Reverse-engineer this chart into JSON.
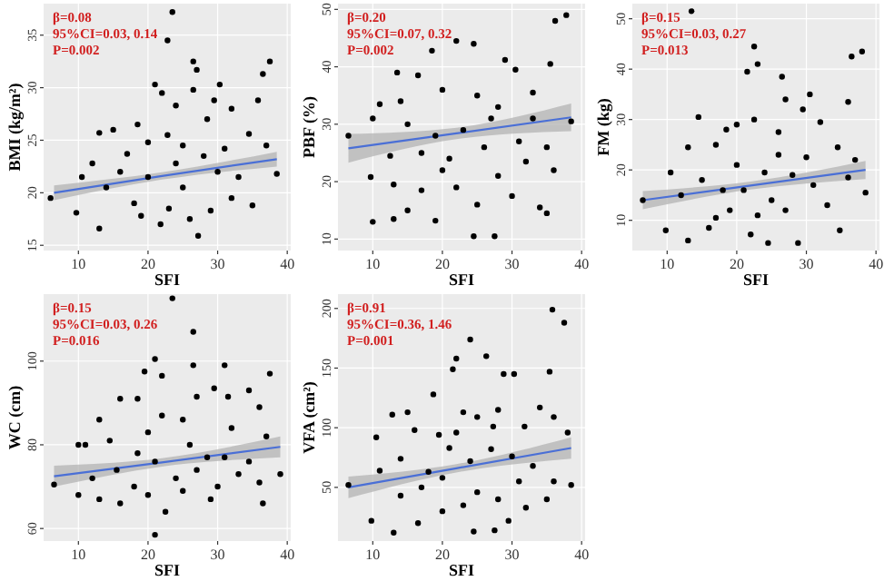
{
  "chart_data": [
    {
      "type": "scatter",
      "xlabel": "SFI",
      "ylabel": "BMI (kg/m²)",
      "xlim": [
        5,
        40.5
      ],
      "xticks": [
        10,
        20,
        30,
        40
      ],
      "ylim": [
        14.5,
        38
      ],
      "yticks": [
        15,
        20,
        25,
        30,
        35
      ],
      "grid": true,
      "marker": "circle",
      "annotations": [
        "β=0.08",
        "95%CI=0.03, 0.14",
        "P=0.002"
      ],
      "series": [
        {
          "type": "scatter",
          "color": "#000000",
          "x": [
            23.5,
            22.8,
            26.5,
            37.5,
            27,
            36.5,
            21,
            30.3,
            26.5,
            29.5,
            35.8,
            22,
            24,
            32,
            18.5,
            28.5,
            13,
            22.8,
            34.5,
            15,
            37,
            20,
            25,
            10.5,
            6,
            9.7,
            13,
            21.8,
            27.2,
            35,
            38.5,
            16,
            18,
            25,
            30,
            32,
            20,
            23,
            28,
            14,
            17,
            26,
            31,
            19,
            24,
            33,
            12,
            29
          ],
          "values": [
            37.2,
            34.5,
            32.5,
            32.5,
            31.7,
            31.3,
            30.3,
            30.3,
            29.8,
            28.8,
            28.8,
            29.5,
            28.3,
            28,
            26.5,
            27,
            25.7,
            25.5,
            25.6,
            26,
            24.5,
            24.8,
            24.5,
            21.5,
            19.5,
            18.1,
            16.6,
            17,
            15.9,
            18.8,
            21.8,
            22,
            19,
            20.5,
            22,
            19.5,
            21.5,
            18.5,
            23.5,
            20.5,
            23.7,
            17.5,
            24.2,
            17.8,
            22.8,
            21.5,
            22.8,
            18.3
          ]
        },
        {
          "type": "line",
          "marker": "none",
          "color": "#4a6fd6",
          "x": [
            6.5,
            22,
            38.5
          ],
          "values": [
            20,
            21.6,
            23.2
          ],
          "lower": [
            19.3,
            21.25,
            22.5
          ],
          "upper": [
            20.7,
            21.95,
            23.9
          ]
        }
      ]
    },
    {
      "type": "scatter",
      "xlabel": "SFI",
      "ylabel": "PBF (%)",
      "xlim": [
        5,
        40.5
      ],
      "xticks": [
        10,
        20,
        30,
        40
      ],
      "ylim": [
        8,
        51
      ],
      "yticks": [
        10,
        20,
        30,
        40,
        50
      ],
      "grid": true,
      "marker": "circle",
      "annotations": [
        "β=0.20",
        "95%CI=0.07, 0.32",
        "P=0.002"
      ],
      "series": [
        {
          "type": "scatter",
          "color": "#000000",
          "x": [
            37.8,
            36.2,
            22,
            24.5,
            18.5,
            29,
            35.5,
            13.5,
            16.5,
            30.5,
            11,
            10,
            14,
            20,
            25,
            28,
            33,
            38.5,
            6.5,
            15,
            19,
            23,
            27,
            31,
            35,
            17,
            21,
            26,
            32,
            36,
            9.7,
            13,
            17,
            22,
            30,
            25,
            34,
            10,
            13,
            15,
            19,
            24.5,
            27.5,
            35,
            20,
            28,
            12.5,
            33
          ],
          "values": [
            49,
            48,
            44.5,
            44,
            42.8,
            41.2,
            40.5,
            39,
            38.5,
            39.5,
            33.5,
            31,
            34,
            36,
            35,
            33,
            35.5,
            30.5,
            28,
            30,
            28,
            29,
            31,
            27,
            26,
            25,
            24,
            26,
            23.5,
            22,
            20.8,
            19.5,
            18.5,
            19,
            17.5,
            16,
            15.5,
            13,
            13.5,
            15,
            13.2,
            10.5,
            10.5,
            14.5,
            22,
            21,
            24.5,
            31
          ]
        },
        {
          "type": "line",
          "marker": "none",
          "color": "#4a6fd6",
          "x": [
            6.5,
            22,
            38.5
          ],
          "values": [
            25.8,
            28.4,
            31.2
          ],
          "lower": [
            23.3,
            27.4,
            28.8
          ],
          "upper": [
            28.3,
            29.4,
            33.6
          ]
        }
      ]
    },
    {
      "type": "scatter",
      "xlabel": "SFI",
      "ylabel": "FM (kg)",
      "xlim": [
        5,
        40.5
      ],
      "xticks": [
        10,
        20,
        30,
        40
      ],
      "ylim": [
        4,
        53
      ],
      "yticks": [
        10,
        20,
        30,
        40,
        50
      ],
      "grid": true,
      "marker": "circle",
      "annotations": [
        "β=0.15",
        "95%CI=0.03, 0.27",
        "P=0.013"
      ],
      "series": [
        {
          "type": "scatter",
          "color": "#000000",
          "x": [
            13.5,
            22.5,
            38,
            36.5,
            23,
            21.5,
            26.5,
            27,
            30.5,
            36,
            14.5,
            22.5,
            20,
            29.5,
            32,
            18.5,
            26,
            13,
            17,
            34.5,
            37,
            10.5,
            6.5,
            9.8,
            13,
            16,
            22,
            24.5,
            28.8,
            34.8,
            38.5,
            12,
            15,
            19,
            21,
            25,
            28,
            31,
            33,
            36,
            17,
            20,
            24,
            27,
            30,
            18,
            23,
            26
          ],
          "values": [
            51.5,
            44.5,
            43.5,
            42.5,
            41,
            39.5,
            38.5,
            34,
            35,
            33.5,
            30.5,
            30,
            29,
            32,
            29.5,
            28,
            27.5,
            24.5,
            25,
            24.5,
            22,
            19.5,
            14,
            8,
            6,
            8.5,
            7.2,
            5.5,
            5.5,
            8,
            15.5,
            15,
            18,
            12,
            16,
            14,
            19,
            17,
            13,
            18.5,
            10.5,
            21,
            19.5,
            12,
            22.5,
            16,
            11,
            23
          ]
        },
        {
          "type": "line",
          "marker": "none",
          "color": "#4a6fd6",
          "x": [
            6.5,
            22,
            38.5
          ],
          "values": [
            14,
            16.9,
            20
          ],
          "lower": [
            12.2,
            16.1,
            18.2
          ],
          "upper": [
            15.8,
            17.7,
            21.8
          ]
        }
      ]
    },
    {
      "type": "scatter",
      "xlabel": "SFI",
      "ylabel": "WC (cm)",
      "xlim": [
        5,
        40.5
      ],
      "xticks": [
        10,
        20,
        30,
        40
      ],
      "ylim": [
        57,
        116
      ],
      "yticks": [
        60,
        80,
        100
      ],
      "grid": true,
      "marker": "circle",
      "annotations": [
        "β=0.15",
        "95%CI=0.03, 0.26",
        "P=0.016"
      ],
      "series": [
        {
          "type": "scatter",
          "color": "#000000",
          "x": [
            23.5,
            26.5,
            21,
            26.5,
            31,
            19.5,
            22,
            37.5,
            29.5,
            34.5,
            16,
            18.5,
            27,
            31.5,
            36,
            13,
            22,
            25,
            32,
            10,
            11,
            14.5,
            20,
            37,
            6.5,
            10,
            12,
            15.5,
            18,
            21,
            24,
            27,
            30,
            33,
            36,
            39,
            16,
            20,
            22.5,
            21,
            25,
            28.5,
            34.5,
            36.5,
            13,
            18.5,
            26,
            31,
            29
          ],
          "values": [
            115,
            107,
            100.5,
            99,
            99,
            97.5,
            96.5,
            97,
            93.5,
            93,
            91,
            91,
            91.5,
            91.5,
            89,
            86,
            87,
            86,
            84,
            80,
            80,
            81,
            83,
            82,
            70.5,
            68,
            72,
            74,
            70,
            76,
            72,
            74,
            70,
            73,
            71,
            73,
            66,
            68,
            64,
            58.5,
            69,
            77,
            76,
            66,
            67,
            78,
            80,
            77,
            67
          ]
        },
        {
          "type": "line",
          "marker": "none",
          "color": "#4a6fd6",
          "x": [
            6.5,
            22,
            39
          ],
          "values": [
            72.5,
            75.8,
            79.5
          ],
          "lower": [
            70,
            74.8,
            77
          ],
          "upper": [
            75,
            76.8,
            82
          ]
        }
      ]
    },
    {
      "type": "scatter",
      "xlabel": "SFI",
      "ylabel": "VFA (cm²)",
      "xlim": [
        5,
        40.5
      ],
      "xticks": [
        10,
        20,
        30,
        40
      ],
      "ylim": [
        5,
        212
      ],
      "yticks": [
        50,
        100,
        150,
        200
      ],
      "grid": true,
      "marker": "circle",
      "annotations": [
        "β=0.91",
        "95%CI=0.36, 1.46",
        "P=0.001"
      ],
      "series": [
        {
          "type": "scatter",
          "color": "#000000",
          "x": [
            35.8,
            37.5,
            24,
            22,
            26.3,
            21.5,
            28.8,
            30.3,
            35.4,
            18.7,
            12.8,
            15,
            23,
            25,
            28,
            34,
            36,
            38,
            10.5,
            16,
            19.5,
            22,
            27.3,
            31.8,
            6.5,
            11,
            14,
            18,
            21,
            24,
            27,
            30,
            33,
            36,
            38.5,
            9.8,
            13,
            16.5,
            20,
            23,
            24.5,
            27.5,
            29.5,
            32,
            35,
            14,
            17,
            20,
            25,
            28,
            31
          ],
          "values": [
            199,
            188,
            174,
            158,
            160,
            149,
            145,
            145,
            147,
            128,
            111,
            113,
            113,
            109,
            115,
            117,
            109,
            96,
            92,
            98,
            94,
            96,
            101,
            101,
            52,
            64,
            74,
            63,
            83,
            72,
            82,
            76,
            68,
            55,
            52,
            22,
            12,
            20,
            30,
            35,
            13,
            14,
            22,
            33,
            40,
            43,
            50,
            58,
            46,
            40,
            55
          ]
        },
        {
          "type": "line",
          "marker": "none",
          "color": "#4a6fd6",
          "x": [
            6.5,
            22,
            38.5
          ],
          "values": [
            50,
            66,
            83
          ],
          "lower": [
            41,
            62.5,
            74
          ],
          "upper": [
            59,
            69.5,
            92
          ]
        }
      ]
    }
  ]
}
